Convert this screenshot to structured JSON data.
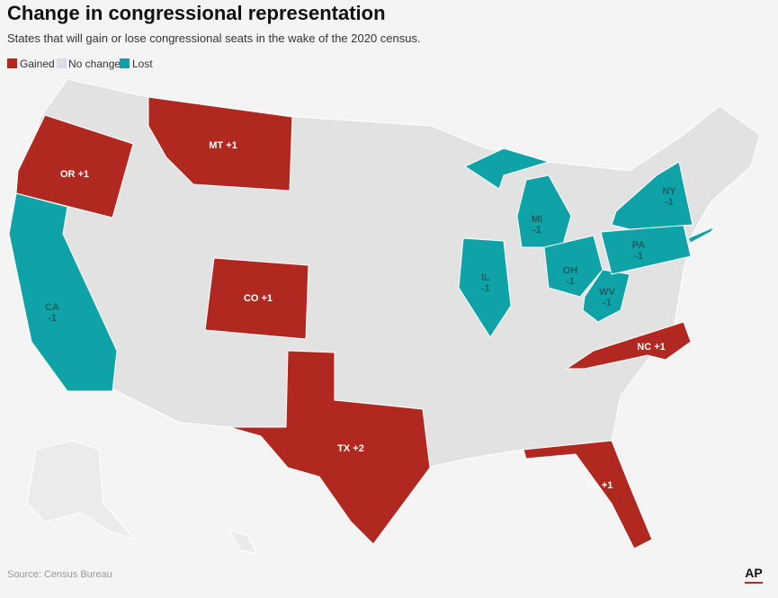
{
  "header": {
    "title": "Change in congressional representation",
    "subtitle": "States that will gain or lose congressional seats in the wake of the 2020 census."
  },
  "legend": [
    {
      "label": "Gained",
      "color": "#b0281f"
    },
    {
      "label": "No change",
      "color": "#dedbe6"
    },
    {
      "label": "Lost",
      "color": "#0fa3a8"
    }
  ],
  "states": [
    {
      "abbr": "OR",
      "change": "+1",
      "color": "#b0281f"
    },
    {
      "abbr": "MT",
      "change": "+1",
      "color": "#b0281f"
    },
    {
      "abbr": "CO",
      "change": "+1",
      "color": "#b0281f"
    },
    {
      "abbr": "TX",
      "change": "+2",
      "color": "#b0281f"
    },
    {
      "abbr": "FL",
      "change": "+1",
      "color": "#b0281f"
    },
    {
      "abbr": "NC",
      "change": "+1",
      "color": "#b0281f"
    },
    {
      "abbr": "CA",
      "change": "-1",
      "color": "#0fa3a8"
    },
    {
      "abbr": "IL",
      "change": "-1",
      "color": "#0fa3a8"
    },
    {
      "abbr": "MI",
      "change": "-1",
      "color": "#0fa3a8"
    },
    {
      "abbr": "OH",
      "change": "-1",
      "color": "#0fa3a8"
    },
    {
      "abbr": "WV",
      "change": "-1",
      "color": "#0fa3a8"
    },
    {
      "abbr": "PA",
      "change": "-1",
      "color": "#0fa3a8"
    },
    {
      "abbr": "NY",
      "change": "-1",
      "color": "#0fa3a8"
    }
  ],
  "footer": {
    "source": "Source: Census Bureau",
    "logo": "AP"
  }
}
